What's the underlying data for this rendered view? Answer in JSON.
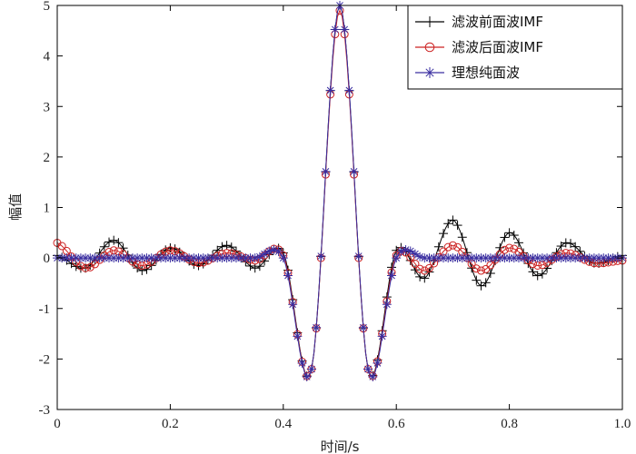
{
  "chart_data": {
    "type": "line",
    "title": "",
    "xlabel": "时间/s",
    "ylabel": "幅值",
    "xlim": [
      0,
      1
    ],
    "ylim": [
      -3,
      5
    ],
    "xticks": [
      0,
      0.2,
      0.4,
      0.6,
      0.8,
      1
    ],
    "xtick_labels": [
      "0",
      "0.2",
      "0.4",
      "0.6",
      "0.8",
      "1.0"
    ],
    "yticks": [
      -3,
      -2,
      -1,
      0,
      1,
      2,
      3,
      4,
      5
    ],
    "yticks_labels": [
      "-3",
      "-2",
      "-1",
      "0",
      "1",
      "2",
      "3",
      "4",
      "5"
    ],
    "grid": false,
    "legend_position": "top-right",
    "series": [
      {
        "name": "滤波前面波IMF",
        "color": "#000000",
        "marker": "plus",
        "x": [
          0,
          0.05,
          0.1,
          0.15,
          0.2,
          0.25,
          0.3,
          0.35,
          0.4,
          0.45,
          0.5,
          0.55,
          0.6,
          0.65,
          0.7,
          0.75,
          0.8,
          0.85,
          0.9,
          0.95,
          1.0
        ],
        "y": [
          0.05,
          -0.2,
          0.35,
          -0.25,
          0.2,
          -0.15,
          0.25,
          -0.2,
          0.1,
          -2.2,
          5.0,
          -2.2,
          0.15,
          -0.4,
          0.75,
          -0.55,
          0.5,
          -0.35,
          0.3,
          -0.1,
          0.05
        ]
      },
      {
        "name": "滤波后面波IMF",
        "color": "#cc2222",
        "marker": "circle",
        "x": [
          0,
          0.05,
          0.1,
          0.15,
          0.2,
          0.25,
          0.3,
          0.35,
          0.4,
          0.45,
          0.5,
          0.55,
          0.6,
          0.65,
          0.7,
          0.75,
          0.8,
          0.85,
          0.9,
          0.95,
          1.0
        ],
        "y": [
          0.3,
          -0.2,
          0.15,
          -0.15,
          0.15,
          -0.1,
          0.1,
          -0.05,
          0.05,
          -2.2,
          4.9,
          -2.2,
          0.05,
          -0.25,
          0.25,
          -0.25,
          0.2,
          -0.15,
          0.1,
          -0.1,
          -0.05
        ]
      },
      {
        "name": "理想纯面波",
        "color": "#3a2ea0",
        "marker": "asterisk",
        "x": [
          0,
          0.05,
          0.1,
          0.15,
          0.2,
          0.25,
          0.3,
          0.35,
          0.4,
          0.45,
          0.5,
          0.55,
          0.6,
          0.65,
          0.7,
          0.75,
          0.8,
          0.85,
          0.9,
          0.95,
          1.0
        ],
        "y": [
          0,
          0,
          0,
          0,
          0,
          0,
          0,
          0,
          0,
          -2.2,
          5.0,
          -2.2,
          0,
          0,
          0,
          0,
          0,
          0,
          0,
          0,
          0
        ]
      }
    ]
  }
}
